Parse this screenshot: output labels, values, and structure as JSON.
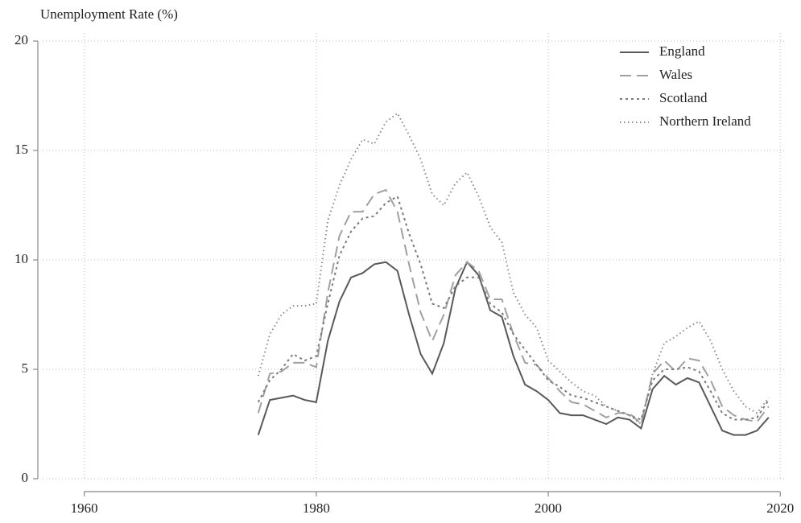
{
  "chart_data": {
    "type": "line",
    "y_label": "Unemployment Rate (%)",
    "x": [
      1975,
      1976,
      1977,
      1978,
      1979,
      1980,
      1981,
      1982,
      1983,
      1984,
      1985,
      1986,
      1987,
      1988,
      1989,
      1990,
      1991,
      1992,
      1993,
      1994,
      1995,
      1996,
      1997,
      1998,
      1999,
      2000,
      2001,
      2002,
      2003,
      2004,
      2005,
      2006,
      2007,
      2008,
      2009,
      2010,
      2011,
      2012,
      2013,
      2014,
      2015,
      2016,
      2017,
      2018,
      2019
    ],
    "series": [
      {
        "name": "England",
        "color": "#595959",
        "linestyle": "solid",
        "values": [
          2.0,
          3.6,
          3.7,
          3.8,
          3.6,
          3.5,
          6.3,
          8.1,
          9.2,
          9.4,
          9.8,
          9.9,
          9.5,
          7.5,
          5.7,
          4.8,
          6.2,
          8.7,
          9.9,
          9.3,
          7.7,
          7.4,
          5.6,
          4.3,
          4.0,
          3.6,
          3.0,
          2.9,
          2.9,
          2.7,
          2.5,
          2.8,
          2.7,
          2.3,
          4.1,
          4.7,
          4.3,
          4.6,
          4.4,
          3.3,
          2.2,
          2.0,
          2.0,
          2.2,
          2.8
        ]
      },
      {
        "name": "Wales",
        "color": "#a0a0a0",
        "linestyle": "dashed",
        "values": [
          3.0,
          4.8,
          4.9,
          5.3,
          5.3,
          5.1,
          8.5,
          11.1,
          12.2,
          12.2,
          13.0,
          13.2,
          12.2,
          9.8,
          7.6,
          6.3,
          7.5,
          9.3,
          9.9,
          9.5,
          8.2,
          8.2,
          6.6,
          5.3,
          5.2,
          4.6,
          4.0,
          3.5,
          3.4,
          3.1,
          2.8,
          3.0,
          3.0,
          2.5,
          4.8,
          5.4,
          4.9,
          5.5,
          5.4,
          4.5,
          3.3,
          2.9,
          2.7,
          2.6,
          3.3
        ]
      },
      {
        "name": "Scotland",
        "color": "#7a7a7a",
        "linestyle": "dotted",
        "values": [
          3.5,
          4.5,
          5.0,
          5.7,
          5.4,
          5.6,
          8.0,
          10.2,
          11.3,
          11.9,
          12.0,
          12.6,
          12.9,
          11.2,
          9.8,
          8.0,
          7.8,
          8.8,
          9.2,
          9.2,
          8.0,
          7.6,
          6.6,
          5.9,
          5.2,
          4.5,
          4.2,
          3.8,
          3.7,
          3.5,
          3.3,
          3.1,
          2.9,
          2.7,
          4.5,
          5.0,
          5.0,
          5.1,
          4.9,
          4.0,
          3.0,
          2.7,
          2.7,
          2.8,
          3.6
        ]
      },
      {
        "name": "Northern Ireland",
        "color": "#8c8c8c",
        "linestyle": "fine-dotted",
        "values": [
          4.7,
          6.6,
          7.5,
          7.9,
          7.9,
          8.0,
          11.8,
          13.4,
          14.6,
          15.5,
          15.3,
          16.3,
          16.7,
          15.7,
          14.6,
          13.0,
          12.5,
          13.5,
          14.0,
          12.9,
          11.5,
          10.8,
          8.5,
          7.5,
          6.9,
          5.4,
          4.9,
          4.4,
          4.0,
          3.8,
          3.3,
          3.1,
          2.9,
          2.5,
          4.8,
          6.2,
          6.5,
          6.9,
          7.2,
          6.3,
          5.0,
          4.0,
          3.3,
          3.0,
          3.7
        ]
      }
    ],
    "xlim": [
      1956,
      2020.4
    ],
    "xticks": [
      1960,
      1980,
      2000,
      2020
    ],
    "ylim": [
      0,
      20
    ],
    "yticks": [
      0,
      5,
      10,
      15,
      20
    ],
    "grid": true,
    "legend": "top-right"
  }
}
